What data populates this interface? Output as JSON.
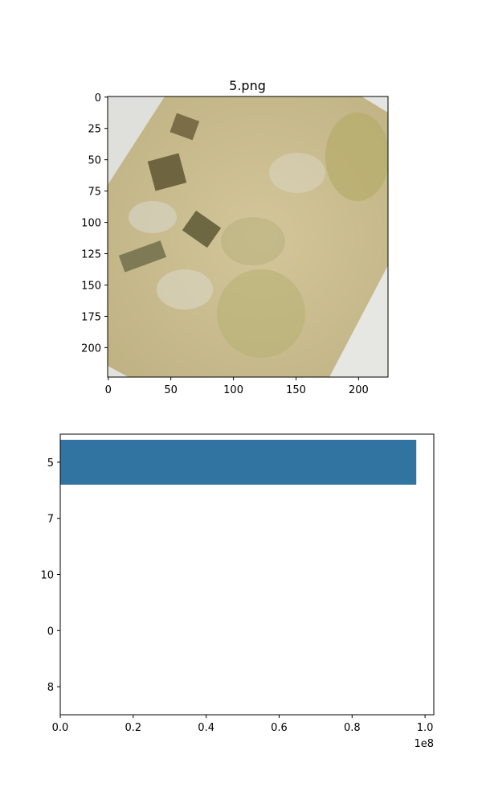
{
  "chart_data": [
    {
      "type": "image",
      "title": "5.png",
      "xlim": [
        -0.5,
        223.5
      ],
      "ylim": [
        223.5,
        -0.5
      ],
      "xticks": [
        0,
        50,
        100,
        150,
        200
      ],
      "yticks": [
        0,
        25,
        50,
        75,
        100,
        125,
        150,
        175,
        200
      ]
    },
    {
      "type": "barh",
      "categories": [
        "5",
        "7",
        "10",
        "0",
        "8"
      ],
      "values": [
        97600000,
        0,
        0,
        0,
        0
      ],
      "color": "#3274a1",
      "xlim": [
        0,
        102400000
      ],
      "xticks": [
        {
          "value": 0,
          "label": "0.0"
        },
        {
          "value": 20000000,
          "label": "0.2"
        },
        {
          "value": 40000000,
          "label": "0.4"
        },
        {
          "value": 60000000,
          "label": "0.6"
        },
        {
          "value": 80000000,
          "label": "0.8"
        },
        {
          "value": 100000000,
          "label": "1.0"
        }
      ],
      "offset_text": "1e8"
    }
  ]
}
